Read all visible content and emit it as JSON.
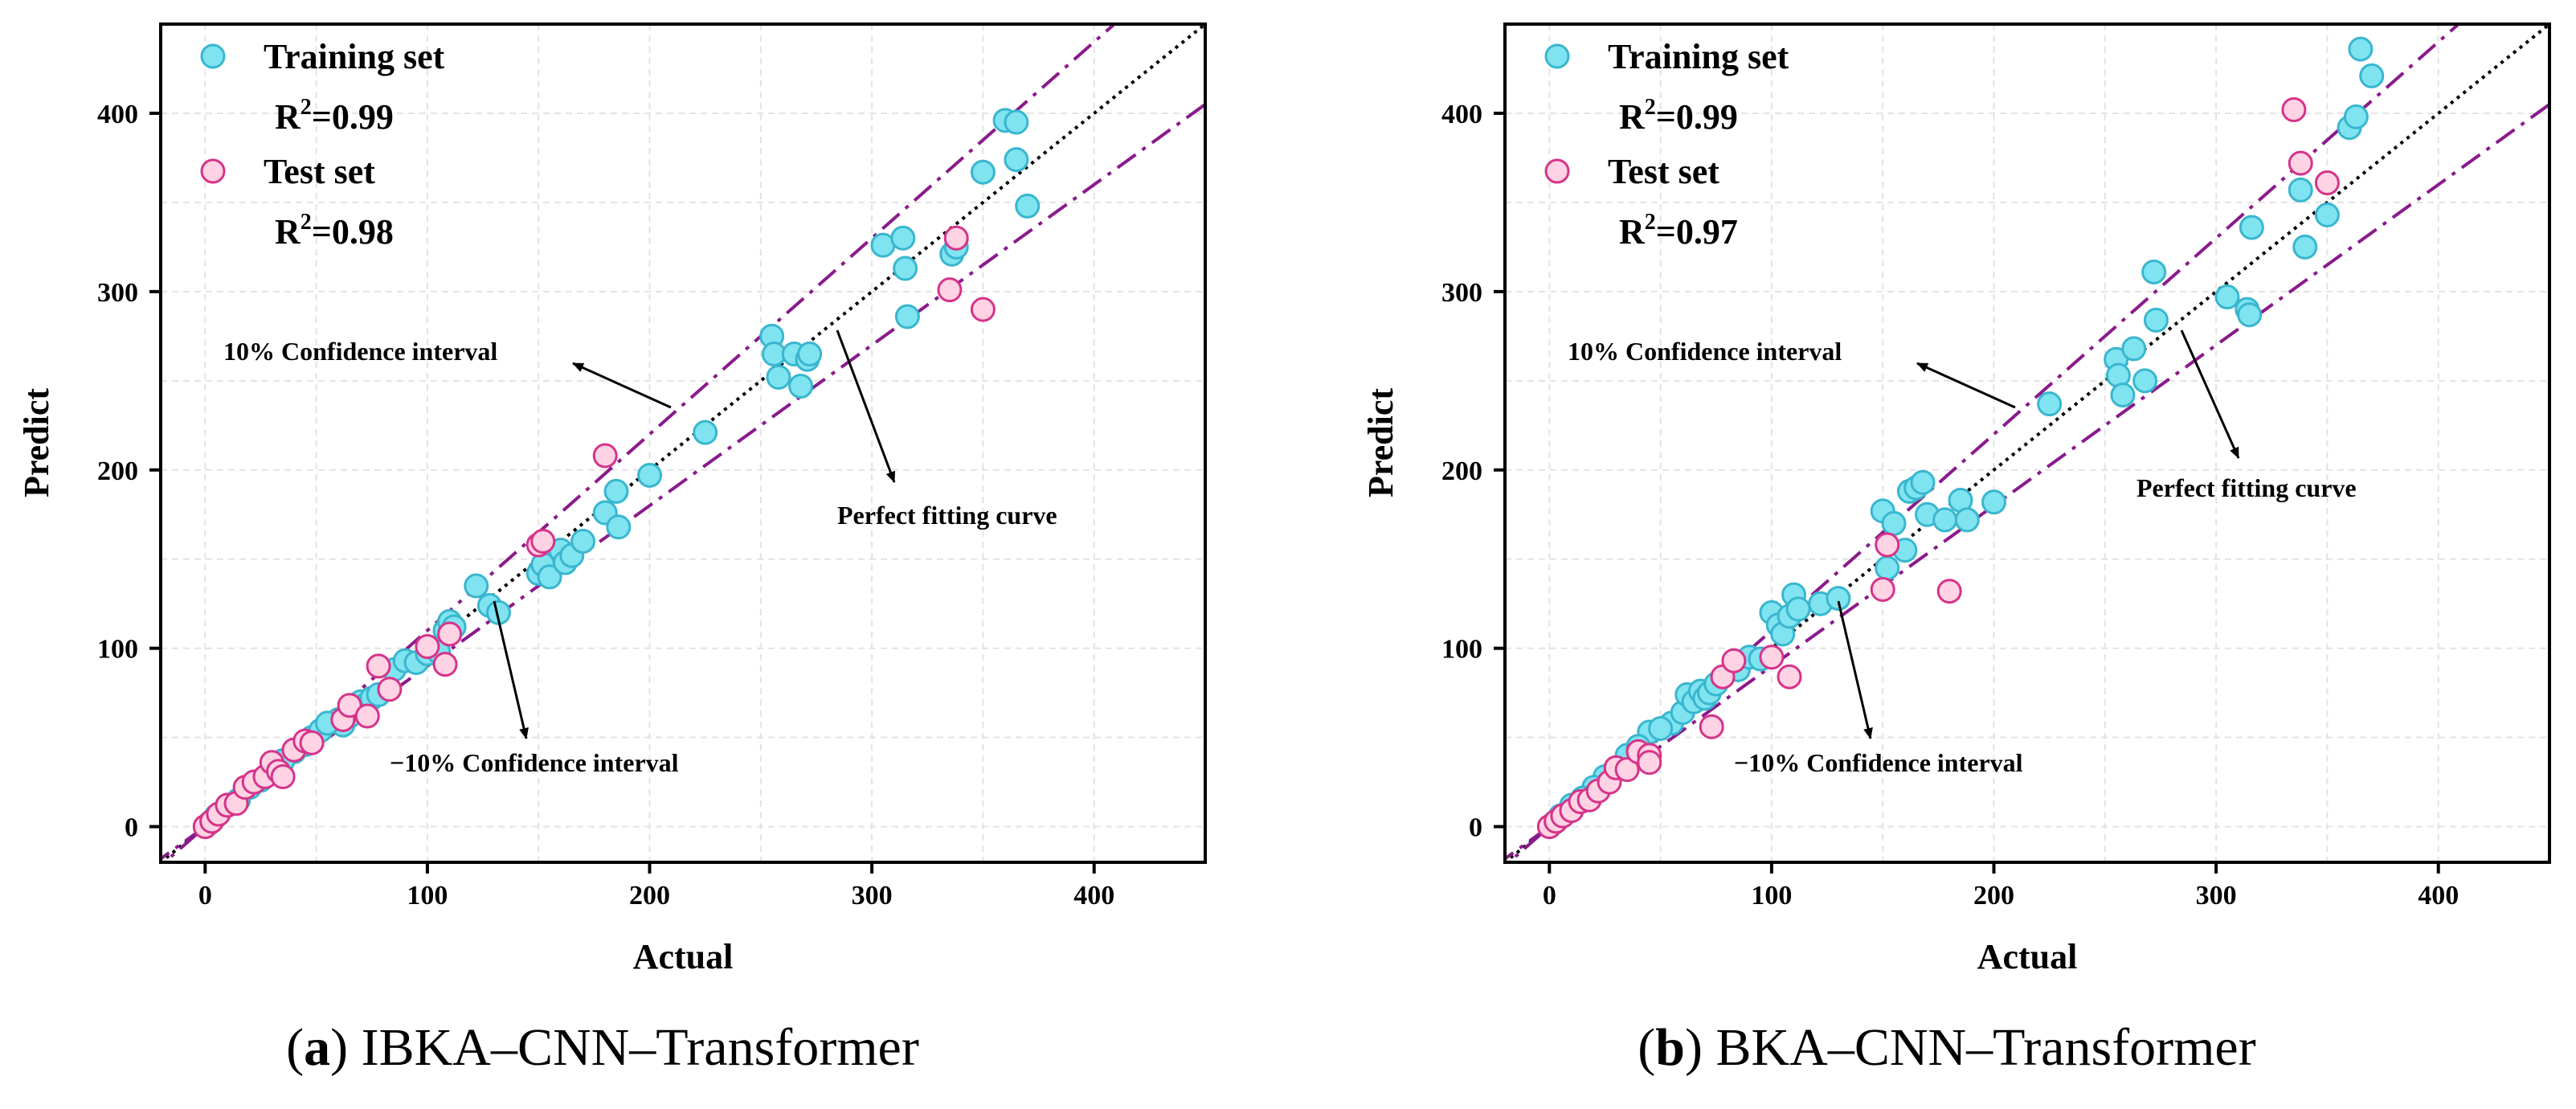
{
  "chart_data": [
    {
      "type": "scatter",
      "caption_letter": "a",
      "caption_text": "IBKA–CNN–Transformer",
      "xlabel": "Actual",
      "ylabel": "Predict",
      "xlim": [
        -20,
        450
      ],
      "ylim": [
        -20,
        450
      ],
      "xticks": [
        0,
        100,
        200,
        300,
        400
      ],
      "yticks": [
        0,
        100,
        200,
        300,
        400
      ],
      "legend": [
        {
          "label": "Training set",
          "r2_prefix": "R",
          "r2_sup": "2",
          "r2_value": "=0.99"
        },
        {
          "label": "Test set",
          "r2_prefix": "R",
          "r2_sup": "2",
          "r2_value": "=0.98"
        }
      ],
      "annotations": {
        "upper_ci": "10% Confidence interval",
        "perfect_fit": "Perfect fitting curve",
        "lower_ci": "−10% Confidence interval"
      },
      "series": [
        {
          "name": "Training set",
          "color": "#7fe3f0",
          "points": [
            [
              60,
              60
            ],
            [
              62,
              57
            ],
            [
              65,
              62
            ],
            [
              68,
              66
            ],
            [
              70,
              70
            ],
            [
              72,
              68
            ],
            [
              75,
              72
            ],
            [
              78,
              74
            ],
            [
              85,
              88
            ],
            [
              90,
              93
            ],
            [
              95,
              92
            ],
            [
              100,
              97
            ],
            [
              105,
              98
            ],
            [
              108,
              110
            ],
            [
              110,
              115
            ],
            [
              112,
              112
            ],
            [
              122,
              135
            ],
            [
              128,
              124
            ],
            [
              132,
              120
            ],
            [
              150,
              142
            ],
            [
              152,
              147
            ],
            [
              155,
              140
            ],
            [
              160,
              155
            ],
            [
              162,
              148
            ],
            [
              165,
              152
            ],
            [
              170,
              160
            ],
            [
              180,
              176
            ],
            [
              185,
              188
            ],
            [
              186,
              168
            ],
            [
              200,
              197
            ],
            [
              225,
              221
            ],
            [
              255,
              275
            ],
            [
              256,
              265
            ],
            [
              258,
              252
            ],
            [
              265,
              265
            ],
            [
              268,
              247
            ],
            [
              271,
              262
            ],
            [
              272,
              265
            ],
            [
              305,
              326
            ],
            [
              314,
              330
            ],
            [
              315,
              313
            ],
            [
              316,
              286
            ],
            [
              336,
              321
            ],
            [
              338,
              325
            ],
            [
              350,
              367
            ],
            [
              360,
              396
            ],
            [
              365,
              395
            ],
            [
              365,
              374
            ],
            [
              370,
              348
            ],
            [
              40,
              42
            ],
            [
              45,
              46
            ],
            [
              48,
              50
            ],
            [
              52,
              54
            ],
            [
              55,
              58
            ],
            [
              20,
              22
            ],
            [
              25,
              26
            ],
            [
              30,
              32
            ],
            [
              35,
              37
            ],
            [
              10,
              12
            ],
            [
              15,
              15
            ],
            [
              5,
              6
            ],
            [
              2,
              2
            ]
          ]
        },
        {
          "name": "Test set",
          "color": "#ffd3e3",
          "points": [
            [
              0,
              0
            ],
            [
              3,
              3
            ],
            [
              6,
              7
            ],
            [
              10,
              12
            ],
            [
              14,
              13
            ],
            [
              18,
              22
            ],
            [
              22,
              25
            ],
            [
              27,
              28
            ],
            [
              30,
              36
            ],
            [
              33,
              31
            ],
            [
              35,
              28
            ],
            [
              40,
              43
            ],
            [
              45,
              48
            ],
            [
              48,
              47
            ],
            [
              62,
              60
            ],
            [
              65,
              68
            ],
            [
              73,
              62
            ],
            [
              78,
              90
            ],
            [
              83,
              77
            ],
            [
              100,
              101
            ],
            [
              108,
              91
            ],
            [
              110,
              108
            ],
            [
              150,
              158
            ],
            [
              152,
              160
            ],
            [
              180,
              208
            ],
            [
              335,
              301
            ],
            [
              338,
              330
            ],
            [
              350,
              290
            ]
          ]
        }
      ]
    },
    {
      "type": "scatter",
      "caption_letter": "b",
      "caption_text": "BKA–CNN–Transformer",
      "xlabel": "Actual",
      "ylabel": "Predict",
      "xlim": [
        -20,
        450
      ],
      "ylim": [
        -20,
        450
      ],
      "xticks": [
        0,
        100,
        200,
        300,
        400
      ],
      "yticks": [
        0,
        100,
        200,
        300,
        400
      ],
      "legend": [
        {
          "label": "Training set",
          "r2_prefix": "R",
          "r2_sup": "2",
          "r2_value": "=0.99"
        },
        {
          "label": "Test set",
          "r2_prefix": "R",
          "r2_sup": "2",
          "r2_value": "=0.97"
        }
      ],
      "annotations": {
        "upper_ci": "10% Confidence interval",
        "perfect_fit": "Perfect fitting curve",
        "lower_ci": "−10% Confidence interval"
      },
      "series": [
        {
          "name": "Training set",
          "color": "#7fe3f0",
          "points": [
            [
              45,
              53
            ],
            [
              55,
              58
            ],
            [
              60,
              64
            ],
            [
              62,
              74
            ],
            [
              65,
              70
            ],
            [
              68,
              76
            ],
            [
              70,
              72
            ],
            [
              72,
              75
            ],
            [
              75,
              80
            ],
            [
              85,
              88
            ],
            [
              90,
              95
            ],
            [
              95,
              94
            ],
            [
              100,
              120
            ],
            [
              103,
              113
            ],
            [
              105,
              108
            ],
            [
              108,
              118
            ],
            [
              110,
              130
            ],
            [
              112,
              122
            ],
            [
              122,
              125
            ],
            [
              130,
              128
            ],
            [
              150,
              177
            ],
            [
              152,
              145
            ],
            [
              155,
              170
            ],
            [
              160,
              155
            ],
            [
              162,
              188
            ],
            [
              165,
              190
            ],
            [
              168,
              193
            ],
            [
              170,
              175
            ],
            [
              178,
              172
            ],
            [
              185,
              183
            ],
            [
              188,
              172
            ],
            [
              200,
              182
            ],
            [
              225,
              237
            ],
            [
              255,
              262
            ],
            [
              256,
              253
            ],
            [
              258,
              242
            ],
            [
              263,
              268
            ],
            [
              268,
              250
            ],
            [
              272,
              311
            ],
            [
              273,
              284
            ],
            [
              305,
              297
            ],
            [
              314,
              290
            ],
            [
              315,
              287
            ],
            [
              316,
              336
            ],
            [
              338,
              357
            ],
            [
              340,
              325
            ],
            [
              350,
              343
            ],
            [
              360,
              392
            ],
            [
              363,
              398
            ],
            [
              365,
              436
            ],
            [
              370,
              421
            ],
            [
              35,
              40
            ],
            [
              40,
              45
            ],
            [
              30,
              33
            ],
            [
              25,
              28
            ],
            [
              20,
              22
            ],
            [
              15,
              16
            ],
            [
              10,
              12
            ],
            [
              5,
              6
            ],
            [
              2,
              2
            ],
            [
              50,
              55
            ]
          ]
        },
        {
          "name": "Test set",
          "color": "#ffd3e3",
          "points": [
            [
              0,
              0
            ],
            [
              3,
              3
            ],
            [
              6,
              6
            ],
            [
              10,
              9
            ],
            [
              14,
              14
            ],
            [
              18,
              15
            ],
            [
              22,
              20
            ],
            [
              27,
              25
            ],
            [
              30,
              33
            ],
            [
              35,
              32
            ],
            [
              40,
              42
            ],
            [
              45,
              40
            ],
            [
              45,
              36
            ],
            [
              73,
              56
            ],
            [
              78,
              84
            ],
            [
              83,
              93
            ],
            [
              100,
              95
            ],
            [
              108,
              84
            ],
            [
              150,
              133
            ],
            [
              152,
              158
            ],
            [
              180,
              132
            ],
            [
              335,
              402
            ],
            [
              338,
              372
            ],
            [
              350,
              361
            ]
          ]
        }
      ]
    }
  ]
}
